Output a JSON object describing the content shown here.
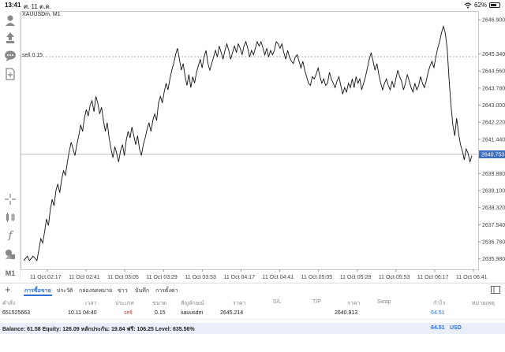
{
  "status_bar": {
    "time": "13:41",
    "date": "ศ. 11 ต.ค.",
    "battery": "62%",
    "battery_level": 0.62
  },
  "chart": {
    "symbol": "XAUUSDm, M1",
    "sell_label": "sell 0.15",
    "current_price": "2640.753",
    "y_ticks": [
      "2646.900",
      "2645.340",
      "2644.560",
      "2643.780",
      "2643.000",
      "2642.220",
      "2641.440",
      "2640.660",
      "2639.880",
      "2639.100",
      "2638.320",
      "2637.540",
      "2636.760",
      "2635.980"
    ],
    "x_ticks": [
      "11 Oct 02:17",
      "11 Oct 02:41",
      "11 Oct 03:05",
      "11 Oct 03:29",
      "11 Oct 03:53",
      "11 Oct 04:17",
      "11 Oct 04:41",
      "11 Oct 05:05",
      "11 Oct 05:29",
      "11 Oct 05:53",
      "11 Oct 06:17",
      "11 Oct 06:41"
    ]
  },
  "chart_data": {
    "type": "line",
    "y_axis_min": 2635.5,
    "y_axis_max": 2647.3,
    "sell_level": 2645.214,
    "current_level": 2640.753,
    "values": [
      2635.9,
      2636.0,
      2636.1,
      2635.9,
      2636.0,
      2636.1,
      2636.0,
      2635.9,
      2636.4,
      2636.9,
      2636.7,
      2637.2,
      2637.8,
      2637.5,
      2638.2,
      2638.7,
      2638.4,
      2639.1,
      2639.4,
      2639.0,
      2639.6,
      2640.0,
      2639.8,
      2640.4,
      2640.9,
      2641.3,
      2641.0,
      2640.7,
      2641.2,
      2641.6,
      2642.1,
      2641.8,
      2642.4,
      2642.8,
      2642.5,
      2643.0,
      2643.2,
      2642.7,
      2643.4,
      2643.1,
      2642.6,
      2642.9,
      2642.3,
      2641.8,
      2642.2,
      2641.5,
      2641.0,
      2640.6,
      2641.1,
      2640.8,
      2640.4,
      2640.9,
      2641.2,
      2640.7,
      2641.4,
      2641.8,
      2641.5,
      2642.0,
      2641.6,
      2641.2,
      2641.6,
      2641.0,
      2640.7,
      2641.2,
      2641.5,
      2641.9,
      2642.2,
      2641.8,
      2642.3,
      2642.6,
      2642.3,
      2643.1,
      2643.4,
      2643.1,
      2643.6,
      2644.0,
      2643.7,
      2644.2,
      2644.6,
      2644.9,
      2645.3,
      2645.6,
      2645.1,
      2644.6,
      2644.9,
      2644.3,
      2643.9,
      2644.4,
      2643.8,
      2644.3,
      2644.0,
      2644.5,
      2644.8,
      2645.1,
      2644.7,
      2645.2,
      2645.5,
      2644.9,
      2644.6,
      2644.9,
      2645.2,
      2645.5,
      2645.2,
      2645.7,
      2645.4,
      2645.1,
      2645.5,
      2645.8,
      2645.5,
      2645.1,
      2645.4,
      2645.7,
      2645.4,
      2645.8,
      2645.6,
      2645.3,
      2645.7,
      2645.9,
      2645.6,
      2645.2,
      2645.5,
      2645.3,
      2645.6,
      2645.9,
      2645.7,
      2645.9,
      2645.6,
      2645.3,
      2645.6,
      2645.2,
      2645.5,
      2645.3,
      2645.5,
      2645.9,
      2645.8,
      2645.6,
      2645.8,
      2645.4,
      2645.1,
      2645.5,
      2645.2,
      2645.0,
      2644.9,
      2645.2,
      2645.3,
      2645.0,
      2644.7,
      2645.0,
      2644.6,
      2644.3,
      2644.0,
      2643.9,
      2644.3,
      2644.2,
      2644.4,
      2644.7,
      2644.3,
      2644.0,
      2644.2,
      2643.9,
      2644.0,
      2644.5,
      2644.2,
      2644.0,
      2643.8,
      2644.1,
      2644.3,
      2643.9,
      2643.5,
      2643.8,
      2643.6,
      2644.0,
      2643.8,
      2644.2,
      2643.8,
      2644.3,
      2644.0,
      2644.2,
      2643.7,
      2644.0,
      2644.3,
      2644.7,
      2645.1,
      2645.4,
      2645.0,
      2644.6,
      2644.9,
      2644.4,
      2644.0,
      2643.7,
      2644.0,
      2644.2,
      2643.9,
      2643.7,
      2644.1,
      2643.8,
      2644.2,
      2644.6,
      2644.3,
      2644.1,
      2643.7,
      2644.0,
      2644.4,
      2644.1,
      2643.8,
      2643.6,
      2644.0,
      2643.7,
      2643.9,
      2644.3,
      2644.0,
      2643.8,
      2644.1,
      2644.5,
      2644.8,
      2645.0,
      2644.7,
      2645.2,
      2645.6,
      2645.9,
      2646.3,
      2646.6,
      2646.3,
      2645.6,
      2644.2,
      2643.0,
      2642.1,
      2641.6,
      2642.4,
      2641.7,
      2641.2,
      2640.9,
      2640.5,
      2641.0,
      2640.8,
      2640.4,
      2640.7
    ]
  },
  "tabs": [
    {
      "label": "การซื้อขาย",
      "active": true
    },
    {
      "label": "ประวัติ",
      "active": false
    },
    {
      "label": "กล่องจดหมาย",
      "active": false
    },
    {
      "label": "ข่าว",
      "active": false
    },
    {
      "label": "บันทึก",
      "active": false
    },
    {
      "label": "การตั้งค่า",
      "active": false
    }
  ],
  "table": {
    "headers": [
      "คำสั่ง",
      "เวลา",
      "ประเภท",
      "ขนาด",
      "สัญลักษณ์",
      "ราคา",
      "S/L",
      "T/P",
      "ราคา",
      "Swap",
      "กำไร",
      "หมายเหตุ"
    ],
    "row": {
      "order": "651525663",
      "time": "10.11 04:40",
      "type": "sell",
      "size": "0.15",
      "symbol": "xauusdm",
      "open_price": "2645.214",
      "current_price": "2640.913",
      "profit": "64.51"
    }
  },
  "balance": {
    "text": "Balance: 61.58 Equity: 126.09 หลักประกัน: 19.84 ฟรี: 106.25 Level: 635.56%",
    "profit": "64.51",
    "currency": "USD"
  },
  "colors": {
    "accent": "#2e6fd8",
    "sell": "#d33333",
    "line": "#111111",
    "current_price_bg": "#3d6fc2"
  },
  "toolbar_icons": [
    "account-icon",
    "trade-icon",
    "chat-icon",
    "new-doc-icon",
    "crosshair-icon",
    "indicators-icon",
    "function-icon",
    "objects-icon",
    "timeframe-label"
  ],
  "toolbar_timeframe": "M1"
}
